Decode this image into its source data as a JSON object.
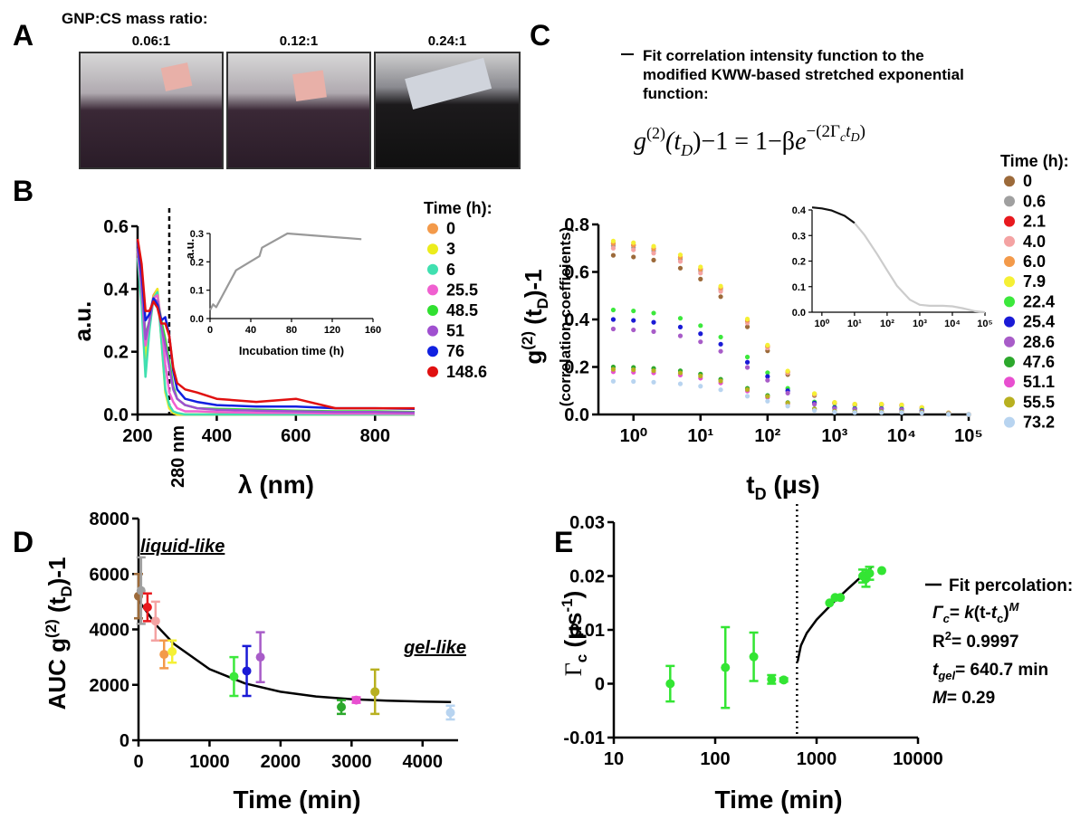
{
  "panel_labels": [
    "A",
    "B",
    "C",
    "D",
    "E"
  ],
  "photos": {
    "title": "GNP:CS mass ratio:",
    "labels": [
      "0.06:1",
      "0.12:1",
      "0.24:1"
    ]
  },
  "chart_data": [
    {
      "type": "line",
      "x_label": "λ (nm)",
      "y_label": "a.u.",
      "legend_title": "Time (h):",
      "x": [
        200,
        210,
        220,
        230,
        240,
        250,
        260,
        270,
        280,
        290,
        300,
        320,
        350,
        400,
        500,
        600,
        700,
        800,
        900
      ],
      "series": [
        {
          "name": "0",
          "color": "#f39a4a",
          "values": [
            0.55,
            0.4,
            0.2,
            0.3,
            0.38,
            0.4,
            0.25,
            0.08,
            0.02,
            0.005,
            0,
            0,
            0,
            0,
            0,
            0,
            0,
            0,
            0
          ]
        },
        {
          "name": "3",
          "color": "#ecec1c",
          "values": [
            0.52,
            0.38,
            0.18,
            0.28,
            0.37,
            0.4,
            0.24,
            0.07,
            0.02,
            0.005,
            0,
            0,
            0,
            0,
            0,
            0,
            0,
            0,
            0
          ]
        },
        {
          "name": "6",
          "color": "#40e0b0",
          "values": [
            0.5,
            0.35,
            0.12,
            0.27,
            0.37,
            0.39,
            0.24,
            0.08,
            0.03,
            0.01,
            0.005,
            0,
            0,
            0,
            0,
            0,
            0,
            0,
            0
          ]
        },
        {
          "name": "25.5",
          "color": "#f060d0",
          "values": [
            0.52,
            0.4,
            0.22,
            0.3,
            0.37,
            0.38,
            0.3,
            0.16,
            0.07,
            0.04,
            0.02,
            0.01,
            0.01,
            0.008,
            0.005,
            0.005,
            0.003,
            0.003,
            0.002
          ]
        },
        {
          "name": "48.5",
          "color": "#30e030",
          "values": [
            0.53,
            0.42,
            0.25,
            0.3,
            0.37,
            0.36,
            0.3,
            0.24,
            0.17,
            0.09,
            0.05,
            0.03,
            0.02,
            0.018,
            0.015,
            0.012,
            0.01,
            0.01,
            0.008
          ]
        },
        {
          "name": "51",
          "color": "#a050d0",
          "values": [
            0.53,
            0.42,
            0.24,
            0.3,
            0.37,
            0.36,
            0.28,
            0.22,
            0.15,
            0.08,
            0.05,
            0.03,
            0.02,
            0.015,
            0.012,
            0.01,
            0.008,
            0.008,
            0.006
          ]
        },
        {
          "name": "76",
          "color": "#1020e0",
          "values": [
            0.55,
            0.45,
            0.3,
            0.32,
            0.37,
            0.35,
            0.3,
            0.31,
            0.25,
            0.14,
            0.08,
            0.05,
            0.04,
            0.03,
            0.025,
            0.025,
            0.02,
            0.02,
            0.018
          ]
        },
        {
          "name": "148.6",
          "color": "#e01010",
          "values": [
            0.56,
            0.48,
            0.33,
            0.33,
            0.36,
            0.34,
            0.29,
            0.29,
            0.25,
            0.15,
            0.1,
            0.08,
            0.07,
            0.05,
            0.04,
            0.05,
            0.02,
            0.02,
            0.02
          ]
        }
      ],
      "xlim": [
        200,
        900
      ],
      "ylim": [
        0,
        0.6
      ],
      "xticks": [
        200,
        400,
        600,
        800
      ],
      "yticks": [
        {
          "value": 0,
          "label": "0.0"
        },
        0.2,
        0.4,
        0.6
      ],
      "vline": 280,
      "vline_label": "280 nm"
    },
    {
      "type": "line",
      "x_label": "Incubation time (h)",
      "y_label": "a.u.",
      "x": [
        0,
        3,
        6,
        25.5,
        48.5,
        51,
        76,
        148.6
      ],
      "values": [
        0.03,
        0.05,
        0.04,
        0.17,
        0.22,
        0.25,
        0.3,
        0.28
      ],
      "color": "#999999",
      "xlim": [
        0,
        160
      ],
      "ylim": [
        0,
        0.3
      ],
      "xticks": [
        0,
        40,
        80,
        120,
        160
      ],
      "yticks": [
        {
          "value": 0,
          "label": "0.0"
        },
        0.1,
        0.2,
        0.3
      ]
    },
    {
      "type": "scatter",
      "log_x": true,
      "legend_title": "Time (h):",
      "y_label_parts": [
        "g",
        "(2)",
        " (t",
        "D",
        ")-1"
      ],
      "y_label_2": "(correlation coefficients)",
      "x_label_parts": [
        "t",
        "D",
        " (μs)"
      ],
      "note_lines": [
        "Fit correlation intensity function to the",
        "modified KWW-based stretched exponential",
        "function:"
      ],
      "equation": [
        "g",
        "(2)",
        "(t",
        "D",
        ")−1 = 1−β",
        "e",
        "−(2Γ",
        "c",
        "t",
        "D",
        ")"
      ],
      "x": [
        0.5,
        1,
        2,
        5,
        10,
        20,
        50,
        100,
        200,
        500,
        1000,
        2000,
        5000,
        10000,
        20000,
        50000,
        100000
      ],
      "series": [
        {
          "name": "0",
          "color": "#9c6a3a",
          "values": [
            0.67,
            0.663,
            0.65,
            0.616,
            0.57,
            0.496,
            0.369,
            0.268,
            0.168,
            0.08,
            0.047,
            0.04,
            0.04,
            0.037,
            0.027,
            0.007,
            0
          ]
        },
        {
          "name": "0.6",
          "color": "#a0a0a0",
          "values": [
            0.71,
            0.703,
            0.689,
            0.653,
            0.604,
            0.525,
            0.391,
            0.284,
            0.178,
            0.085,
            0.05,
            0.043,
            0.043,
            0.039,
            0.028,
            0.007,
            0
          ]
        },
        {
          "name": "2.1",
          "color": "#e8191e",
          "values": [
            0.72,
            0.713,
            0.698,
            0.662,
            0.612,
            0.533,
            0.396,
            0.288,
            0.18,
            0.086,
            0.05,
            0.043,
            0.043,
            0.04,
            0.029,
            0.007,
            0
          ]
        },
        {
          "name": "4.0",
          "color": "#f4a3a3",
          "values": [
            0.7,
            0.693,
            0.679,
            0.644,
            0.595,
            0.518,
            0.385,
            0.28,
            0.175,
            0.084,
            0.049,
            0.042,
            0.042,
            0.039,
            0.028,
            0.007,
            0
          ]
        },
        {
          "name": "6.0",
          "color": "#f39a4a",
          "values": [
            0.72,
            0.713,
            0.698,
            0.662,
            0.612,
            0.533,
            0.396,
            0.288,
            0.18,
            0.086,
            0.05,
            0.043,
            0.043,
            0.04,
            0.029,
            0.007,
            0
          ]
        },
        {
          "name": "7.9",
          "color": "#f5f035",
          "values": [
            0.73,
            0.723,
            0.708,
            0.672,
            0.621,
            0.54,
            0.402,
            0.292,
            0.183,
            0.088,
            0.051,
            0.044,
            0.044,
            0.04,
            0.029,
            0.007,
            0
          ]
        },
        {
          "name": "22.4",
          "color": "#3ce83c",
          "values": [
            0.44,
            0.436,
            0.427,
            0.405,
            0.374,
            0.326,
            0.242,
            0.176,
            0.11,
            0.053,
            0.031,
            0.026,
            0.026,
            0.024,
            0.018,
            0.004,
            0
          ]
        },
        {
          "name": "25.4",
          "color": "#1a1ad6",
          "values": [
            0.4,
            0.396,
            0.388,
            0.368,
            0.34,
            0.296,
            0.22,
            0.16,
            0.1,
            0.048,
            0.028,
            0.024,
            0.024,
            0.022,
            0.016,
            0.004,
            0
          ]
        },
        {
          "name": "28.6",
          "color": "#a85cc8",
          "values": [
            0.36,
            0.356,
            0.349,
            0.331,
            0.306,
            0.266,
            0.198,
            0.144,
            0.09,
            0.043,
            0.025,
            0.022,
            0.022,
            0.02,
            0.014,
            0.004,
            0
          ]
        },
        {
          "name": "47.6",
          "color": "#2ca82c",
          "values": [
            0.2,
            0.198,
            0.194,
            0.184,
            0.17,
            0.148,
            0.11,
            0.08,
            0.05,
            0.024,
            0.014,
            0.012,
            0.012,
            0.011,
            0.008,
            0.002,
            0
          ]
        },
        {
          "name": "51.1",
          "color": "#e84fd0",
          "values": [
            0.18,
            0.178,
            0.175,
            0.166,
            0.153,
            0.133,
            0.099,
            0.072,
            0.045,
            0.022,
            0.013,
            0.011,
            0.011,
            0.01,
            0.007,
            0.002,
            0
          ]
        },
        {
          "name": "55.5",
          "color": "#b8b020",
          "values": [
            0.19,
            0.188,
            0.184,
            0.175,
            0.162,
            0.141,
            0.105,
            0.076,
            0.048,
            0.023,
            0.013,
            0.011,
            0.011,
            0.01,
            0.008,
            0.002,
            0
          ]
        },
        {
          "name": "73.2",
          "color": "#b8d4f0",
          "values": [
            0.14,
            0.139,
            0.136,
            0.129,
            0.119,
            0.104,
            0.077,
            0.056,
            0.035,
            0.017,
            0.01,
            0.008,
            0.008,
            0.008,
            0.006,
            0.001,
            0
          ]
        }
      ],
      "xlim": [
        0.3,
        100000
      ],
      "ylim": [
        0,
        0.8
      ],
      "xticks": [
        {
          "value": 1,
          "label": "10⁰"
        },
        {
          "value": 10,
          "label": "10¹"
        },
        {
          "value": 100,
          "label": "10²"
        },
        {
          "value": 1000,
          "label": "10³"
        },
        {
          "value": 10000,
          "label": "10⁴"
        },
        {
          "value": 100000,
          "label": "10⁵"
        }
      ],
      "yticks": [
        {
          "value": 0,
          "label": "0.0"
        },
        0.2,
        0.4,
        0.6,
        0.8
      ]
    },
    {
      "type": "line",
      "log_x": true,
      "x": [
        0.5,
        1,
        2,
        5,
        10,
        20,
        50,
        100,
        200,
        500,
        1000,
        2000,
        5000,
        10000,
        20000,
        50000,
        100000
      ],
      "series": [
        {
          "color": "#111111",
          "values": [
            0.41,
            0.406,
            0.398,
            0.377,
            0.349,
            null,
            null,
            null,
            null,
            null,
            null,
            null,
            null,
            null,
            null,
            null,
            null
          ]
        },
        {
          "color": "#cccccc",
          "values": [
            null,
            null,
            null,
            null,
            0.349,
            0.303,
            0.226,
            0.164,
            0.103,
            0.049,
            0.029,
            0.025,
            0.025,
            0.023,
            0.016,
            0.004,
            0
          ]
        }
      ],
      "xlim": [
        0.5,
        100000
      ],
      "ylim": [
        0,
        0.4
      ],
      "xticks": [
        {
          "value": 1,
          "label": "10⁰"
        },
        {
          "value": 10,
          "label": "10¹"
        },
        {
          "value": 100,
          "label": "10²"
        },
        {
          "value": 1000,
          "label": "10³"
        },
        {
          "value": 10000,
          "label": "10⁴"
        },
        {
          "value": 100000,
          "label": "10⁵"
        }
      ],
      "yticks": [
        {
          "value": 0,
          "label": "0.0"
        },
        0.1,
        0.2,
        0.3,
        0.4
      ]
    },
    {
      "type": "errorbar",
      "y_label_parts": [
        "AUC g",
        "(2)",
        " (t",
        "D",
        ")-1"
      ],
      "x_label": "Time (min)",
      "annotations": [
        "liquid-like",
        "gel-like"
      ],
      "x": [
        0,
        36,
        126,
        240,
        360,
        474,
        1344,
        1524,
        1716,
        2856,
        3066,
        3330,
        4392
      ],
      "values": [
        5200,
        5400,
        4800,
        4300,
        3100,
        3200,
        2300,
        2500,
        3000,
        1200,
        1450,
        1750,
        1000
      ],
      "errors": [
        800,
        1200,
        500,
        700,
        500,
        400,
        700,
        900,
        900,
        250,
        100,
        800,
        250
      ],
      "colors": [
        "#9c6a3a",
        "#a0a0a0",
        "#e8191e",
        "#f4a3a3",
        "#f39a4a",
        "#f5f035",
        "#3ce83c",
        "#1a1ad6",
        "#a85cc8",
        "#2ca82c",
        "#e84fd0",
        "#b8b020",
        "#b8d4f0"
      ],
      "fit": {
        "color": "#000000",
        "x": [
          0,
          250,
          500,
          1000,
          1500,
          2000,
          2500,
          3000,
          3500,
          4000,
          4400
        ],
        "values": [
          5050,
          4152,
          3473,
          2568,
          2049,
          1751,
          1580,
          1482,
          1426,
          1394,
          1378
        ]
      },
      "xlim": [
        0,
        4500
      ],
      "ylim": [
        0,
        8000
      ],
      "xticks": [
        0,
        1000,
        2000,
        3000,
        4000
      ],
      "yticks": [
        0,
        2000,
        4000,
        6000,
        8000
      ]
    },
    {
      "type": "errorbar",
      "log_x": true,
      "y_label_parts": [
        "Γ",
        "c",
        " (μs",
        "-1",
        ")"
      ],
      "x_label": "Time (min)",
      "fit_label": "Fit percolation:",
      "fit_lines": [
        [
          "Γ",
          "c",
          "= ",
          "k",
          "(t-",
          "t",
          "c",
          ")",
          "M"
        ],
        [
          "R",
          "2",
          "= 0.9997"
        ],
        [
          "t",
          "gel",
          "= 640.7 min"
        ],
        [
          "M",
          "= 0.29"
        ]
      ],
      "x": [
        36,
        126,
        240,
        360,
        474,
        1344,
        1524,
        1716,
        2856,
        3066,
        3330,
        4392
      ],
      "values": [
        0,
        0.003,
        0.005,
        0.0008,
        0.0007,
        0.015,
        0.016,
        0.016,
        0.02,
        0.0195,
        0.0205,
        0.021
      ],
      "errors": [
        0.0033,
        0.0075,
        0.0045,
        0.0008,
        0.0003,
        null,
        null,
        null,
        0.0012,
        0.0015,
        0.0012,
        null
      ],
      "color": "#33e533",
      "fit": {
        "color": "#000000",
        "x": [
          650,
          700,
          800,
          1000,
          1500,
          2000,
          3000,
          3500
        ],
        "values": [
          0.0041,
          0.0071,
          0.0094,
          0.0119,
          0.0153,
          0.0175,
          0.0205,
          0.0217
        ]
      },
      "vline": 640.7,
      "xlim": [
        10,
        10000
      ],
      "ylim": [
        -0.01,
        0.03
      ],
      "xticks": [
        10,
        100,
        1000,
        10000
      ],
      "yticks": [
        -0.01,
        0,
        0.01,
        0.02,
        0.03
      ]
    }
  ]
}
